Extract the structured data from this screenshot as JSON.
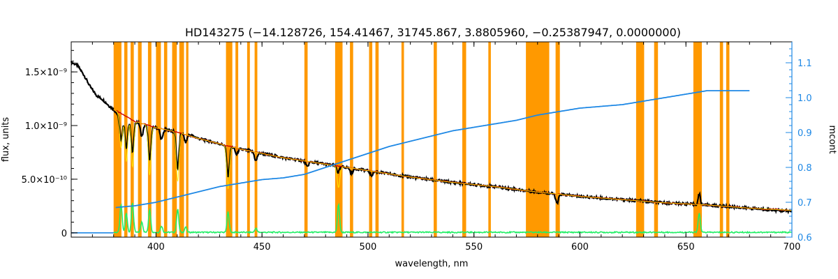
{
  "title": "HD143275    (−14.128726, 154.41467, 31745.867, 3.8805960, −0.25387947, 0.0000000)",
  "colors": {
    "mask": "#ff9900",
    "observed": "#000000",
    "model": "#cc0000",
    "model_lines": "#ffee00",
    "residual": "#22ee66",
    "mcont": "#1e88e5"
  },
  "chart_data": {
    "type": "line",
    "title": "HD143275    (−14.128726, 154.41467, 31745.867, 3.8805960, −0.25387947, 0.0000000)",
    "xlabel": "wavelength, nm",
    "ylabel": "flux, units",
    "y2label": "mcont",
    "xlim": [
      360,
      700
    ],
    "ylim": [
      -4e-11,
      1.78e-09
    ],
    "y2lim": [
      0.6,
      1.16
    ],
    "x_ticks": [
      {
        "value": 400,
        "label": "400"
      },
      {
        "value": 450,
        "label": "450"
      },
      {
        "value": 500,
        "label": "500"
      },
      {
        "value": 550,
        "label": "550"
      },
      {
        "value": 600,
        "label": "600"
      },
      {
        "value": 650,
        "label": "650"
      },
      {
        "value": 700,
        "label": "700"
      }
    ],
    "y_ticks": [
      {
        "value": 0,
        "label": "0"
      },
      {
        "value": 5e-10,
        "label": "5.0×10⁻¹⁰"
      },
      {
        "value": 1e-09,
        "label": "1.0×10⁻⁹"
      },
      {
        "value": 1.5e-09,
        "label": "1.5×10⁻⁹"
      }
    ],
    "y2_ticks": [
      {
        "value": 0.6,
        "label": "0.6"
      },
      {
        "value": 0.7,
        "label": "0.7"
      },
      {
        "value": 0.8,
        "label": "0.8"
      },
      {
        "value": 0.9,
        "label": "0.9"
      },
      {
        "value": 1.0,
        "label": "1.0"
      },
      {
        "value": 1.1,
        "label": "1.1"
      }
    ],
    "masked_regions": [
      [
        380.0,
        383.7
      ],
      [
        385.0,
        386.5
      ],
      [
        388.0,
        389.5
      ],
      [
        391.5,
        393.2
      ],
      [
        396.2,
        397.8
      ],
      [
        400.0,
        402.3
      ],
      [
        403.8,
        405.3
      ],
      [
        407.6,
        409.8
      ],
      [
        411.0,
        413.2
      ],
      [
        414.2,
        415.3
      ],
      [
        433.0,
        436.0
      ],
      [
        437.5,
        438.8
      ],
      [
        443.0,
        444.3
      ],
      [
        446.5,
        447.8
      ],
      [
        470.0,
        471.5
      ],
      [
        484.5,
        488.0
      ],
      [
        491.5,
        493.0
      ],
      [
        500.5,
        502.0
      ],
      [
        503.5,
        505.0
      ],
      [
        515.8,
        517.0
      ],
      [
        531.0,
        532.5
      ],
      [
        544.5,
        546.3
      ],
      [
        556.8,
        558.0
      ],
      [
        574.5,
        585.5
      ],
      [
        588.5,
        590.5
      ],
      [
        626.5,
        630.3
      ],
      [
        635.0,
        636.8
      ],
      [
        653.5,
        657.5
      ],
      [
        666.0,
        667.5
      ],
      [
        669.0,
        670.5
      ]
    ],
    "series": [
      {
        "key": "observed",
        "x": [
          360,
          363,
          366,
          369,
          372,
          375,
          378,
          380,
          382,
          385,
          390,
          395,
          400,
          405,
          410,
          415,
          420,
          430,
          440,
          450,
          460,
          470,
          480,
          490,
          500,
          520,
          540,
          560,
          580,
          600,
          620,
          640,
          660,
          680,
          700
        ],
        "y": [
          1.59e-09,
          1.56e-09,
          1.47e-09,
          1.36e-09,
          1.28e-09,
          1.24e-09,
          1.18e-09,
          1.15e-09,
          1.1e-09,
          1.07e-09,
          1.04e-09,
          1.01e-09,
          9.8e-10,
          9.6e-10,
          9.4e-10,
          9.2e-10,
          8.8e-10,
          8.3e-10,
          7.8e-10,
          7.4e-10,
          7e-10,
          6.7e-10,
          6.4e-10,
          6.1e-10,
          5.8e-10,
          5.2e-10,
          4.7e-10,
          4.3e-10,
          3.8e-10,
          3.4e-10,
          3.1e-10,
          2.8e-10,
          2.6e-10,
          2.3e-10,
          2e-10
        ],
        "absorption_lines": [
          {
            "x": 383.5,
            "depth": 2.2e-10
          },
          {
            "x": 386.0,
            "depth": 2.8e-10
          },
          {
            "x": 388.9,
            "depth": 3e-10
          },
          {
            "x": 393.3,
            "depth": 1.2e-10
          },
          {
            "x": 397.0,
            "depth": 3.2e-10
          },
          {
            "x": 402.6,
            "depth": 1e-10
          },
          {
            "x": 410.2,
            "depth": 3.4e-10
          },
          {
            "x": 414.0,
            "depth": 8e-11
          },
          {
            "x": 434.0,
            "depth": 2.8e-10
          },
          {
            "x": 438.0,
            "depth": 6e-11
          },
          {
            "x": 447.1,
            "depth": 8e-11
          },
          {
            "x": 471.3,
            "depth": 5e-11
          },
          {
            "x": 486.1,
            "depth": 1e-10
          },
          {
            "x": 492.2,
            "depth": 5e-11
          },
          {
            "x": 501.6,
            "depth": 4e-11
          },
          {
            "x": 589.2,
            "depth": 9e-11
          }
        ],
        "emission_lines": [
          {
            "x": 486.3,
            "height": 5e-11
          },
          {
            "x": 656.3,
            "height": 1e-10
          }
        ]
      },
      {
        "key": "model",
        "x": [
          380,
          390,
          400,
          410,
          420,
          430,
          440,
          450,
          460,
          470,
          480,
          490,
          500,
          520,
          540,
          560,
          580,
          600,
          620,
          640,
          660,
          680,
          700
        ],
        "y": [
          1.15e-09,
          1.04e-09,
          9.8e-10,
          9.4e-10,
          8.8e-10,
          8.3e-10,
          7.8e-10,
          7.4e-10,
          7e-10,
          6.7e-10,
          6.4e-10,
          6.1e-10,
          5.8e-10,
          5.2e-10,
          4.7e-10,
          4.3e-10,
          3.8e-10,
          3.4e-10,
          3.1e-10,
          2.8e-10,
          2.6e-10,
          2.3e-10,
          2.1e-10
        ],
        "absorption_lines": [
          {
            "x": 383.5,
            "depth": 3.2e-10
          },
          {
            "x": 386.0,
            "depth": 4.2e-10
          },
          {
            "x": 388.9,
            "depth": 4.4e-10
          },
          {
            "x": 397.0,
            "depth": 4.6e-10
          },
          {
            "x": 410.2,
            "depth": 4.6e-10
          },
          {
            "x": 434.0,
            "depth": 4e-10
          },
          {
            "x": 486.1,
            "depth": 2e-10
          }
        ]
      },
      {
        "key": "residual",
        "x": [
          360,
          380,
          700
        ],
        "y": [
          0.0,
          5e-12,
          5e-12
        ],
        "emission_lines": [
          {
            "x": 383.5,
            "height": 2.6e-10
          },
          {
            "x": 386.0,
            "height": 1.8e-10
          },
          {
            "x": 388.9,
            "height": 2.8e-10
          },
          {
            "x": 393.3,
            "height": 1e-10
          },
          {
            "x": 397.0,
            "height": 2.2e-10
          },
          {
            "x": 402.6,
            "height": 6e-11
          },
          {
            "x": 410.2,
            "height": 2.2e-10
          },
          {
            "x": 414.0,
            "height": 5e-11
          },
          {
            "x": 434.0,
            "height": 1.9e-10
          },
          {
            "x": 447.1,
            "height": 4e-11
          },
          {
            "x": 486.1,
            "height": 2.6e-10
          },
          {
            "x": 656.3,
            "height": 1.8e-10
          }
        ]
      },
      {
        "key": "mcont",
        "axis": "right",
        "x": [
          381,
          390,
          400,
          410,
          420,
          430,
          440,
          450,
          460,
          470,
          480,
          490,
          500,
          510,
          520,
          530,
          540,
          550,
          560,
          570,
          580,
          590,
          600,
          610,
          620,
          630,
          640,
          650,
          660,
          670,
          680
        ],
        "y": [
          0.685,
          0.69,
          0.7,
          0.715,
          0.73,
          0.745,
          0.755,
          0.765,
          0.77,
          0.78,
          0.8,
          0.82,
          0.84,
          0.86,
          0.875,
          0.89,
          0.905,
          0.915,
          0.925,
          0.935,
          0.95,
          0.96,
          0.97,
          0.975,
          0.98,
          0.99,
          1.0,
          1.01,
          1.02,
          1.02,
          1.02
        ]
      }
    ]
  }
}
